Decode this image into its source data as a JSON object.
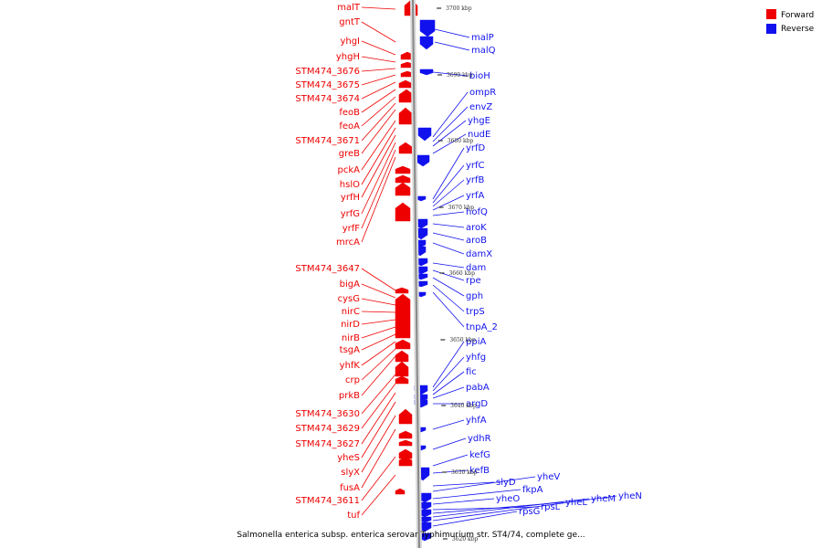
{
  "colors": {
    "forward": "#ee0000",
    "reverse": "#1111ee",
    "axis": "#888888"
  },
  "legend": [
    {
      "label": "Forward",
      "color": "#ee0000"
    },
    {
      "label": "Reverse",
      "color": "#1111ee"
    }
  ],
  "caption": "Salmonella enterica subsp. enterica serovar Typhimurium str. ST4/74, complete ge...",
  "axis_ticks": [
    "3700 kbp",
    "3690 kbp",
    "3680 kbp",
    "3670 kbp",
    "3660 kbp",
    "3650 kbp",
    "3640 kbp",
    "3630 kbp",
    "3620 kbp"
  ],
  "forward_labels": [
    "malT",
    "gntT",
    "yhgI",
    "yhgH",
    "STM474_3676",
    "STM474_3675",
    "STM474_3674",
    "feoB",
    "feoA",
    "STM474_3671",
    "greB",
    "pckA",
    "hslO",
    "yrfH",
    "yrfG",
    "yrfF",
    "mrcA",
    "STM474_3647",
    "bigA",
    "cysG",
    "nirC",
    "nirD",
    "nirB",
    "tsgA",
    "yhfK",
    "crp",
    "prkB",
    "STM474_3630",
    "STM474_3629",
    "STM474_3627",
    "yheS",
    "slyX",
    "fusA",
    "STM474_3611",
    "tuf"
  ],
  "reverse_labels": [
    "malP",
    "malQ",
    "bioH",
    "ompR",
    "envZ",
    "yhgE",
    "nudE",
    "yrfD",
    "yrfC",
    "yrfB",
    "yrfA",
    "hofQ",
    "aroK",
    "aroB",
    "damX",
    "dam",
    "rpe",
    "gph",
    "trpS",
    "tnpA_2",
    "ppiA",
    "yhfg",
    "fic",
    "pabA",
    "argD",
    "yhfA",
    "ydhR",
    "kefG",
    "kefB",
    "slyD",
    "yheV",
    "fkpA",
    "yheO",
    "rpsL",
    "yheL",
    "yheM",
    "yheN",
    "rpsG"
  ]
}
